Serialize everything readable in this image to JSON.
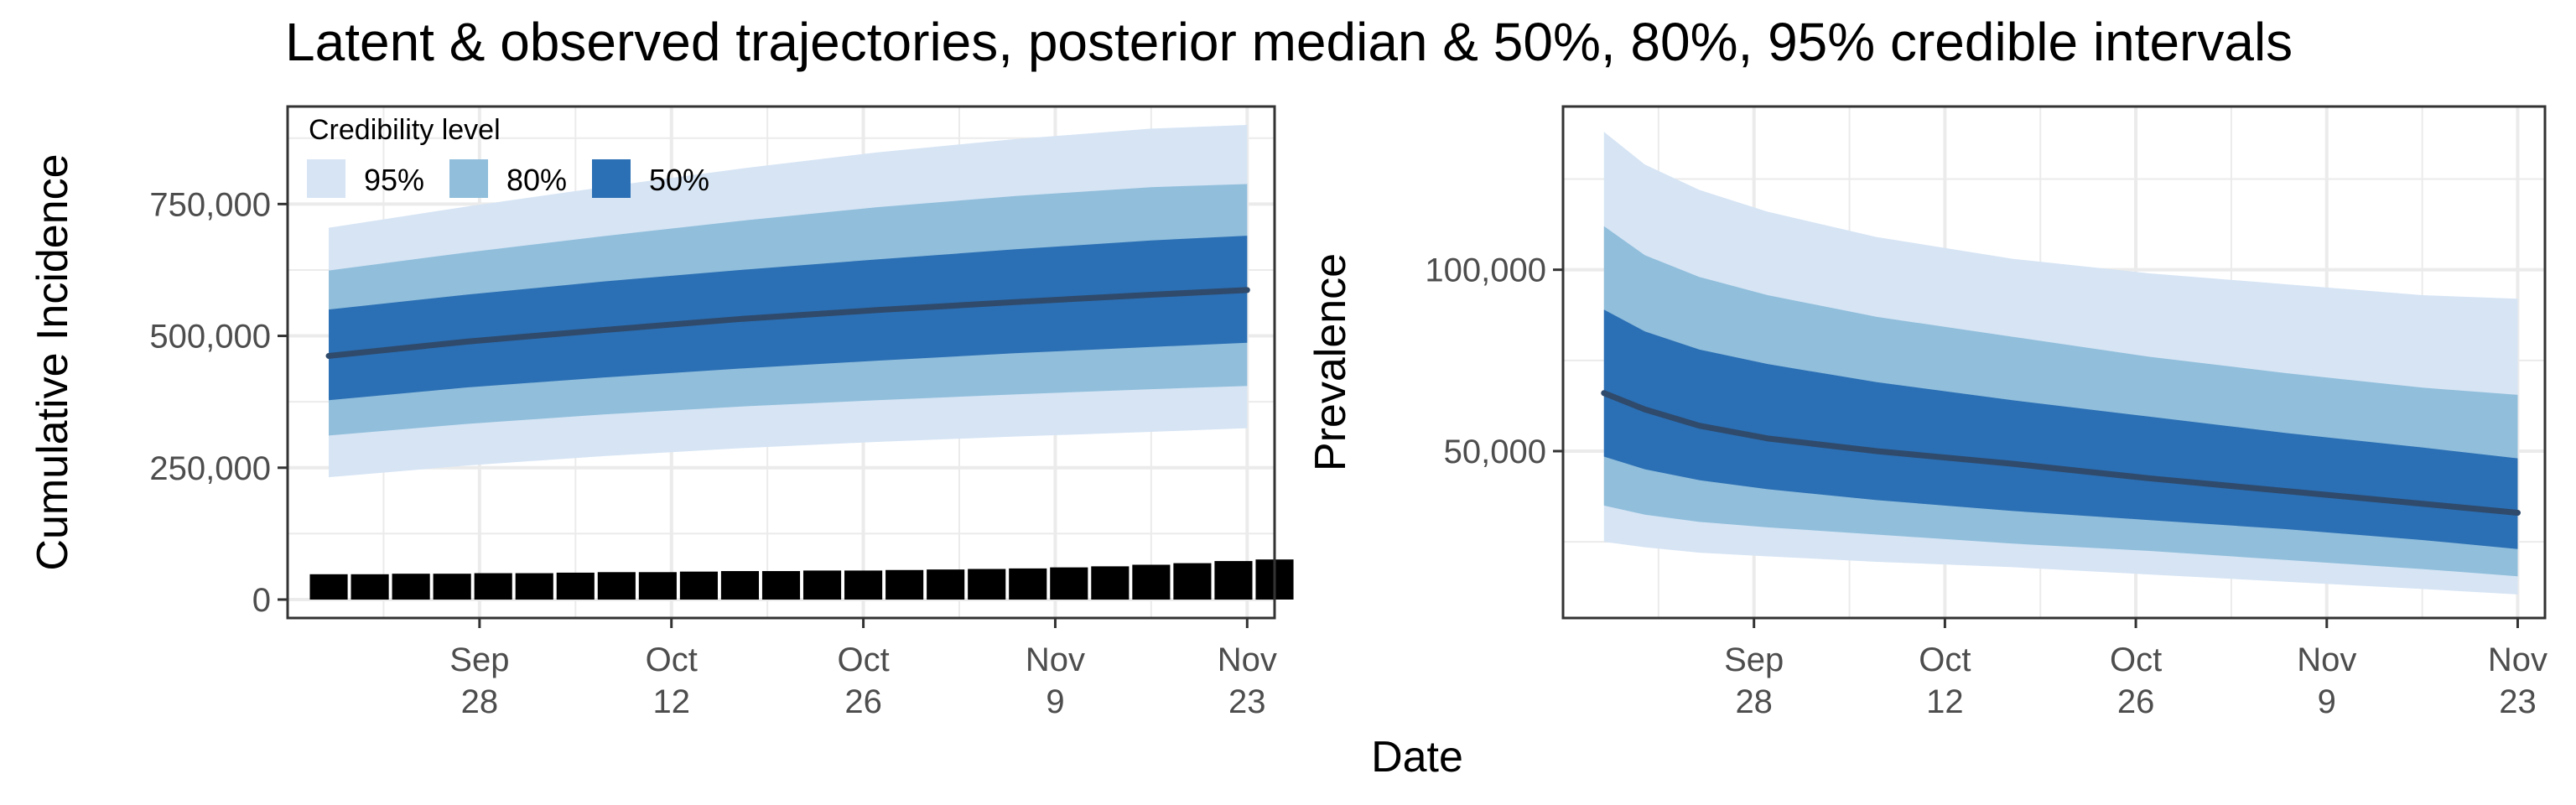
{
  "title": "Latent & observed trajectories, posterior median & 50%, 80%, 95% credible intervals",
  "shared_xlabel": "Date",
  "colors": {
    "ci95": "#d6e4f4",
    "ci80": "#90bedb",
    "ci50": "#2b6fb4",
    "median": "#2f4a6b",
    "bars": "#000000",
    "grid": "#ebebeb",
    "panel_border": "#333333",
    "axis_text": "#4d4d4d"
  },
  "legend": {
    "title": "Credibility level",
    "items": [
      {
        "label": "95%",
        "color": "#d6e4f4"
      },
      {
        "label": "80%",
        "color": "#90bedb"
      },
      {
        "label": "50%",
        "color": "#2b6fb4"
      }
    ],
    "placement": "top-left inside left panel"
  },
  "chart_data": [
    {
      "type": "area",
      "ylabel": "Cumulative Incidence",
      "xlabel": "",
      "x_axis": "date",
      "xlim": [
        "2020-09-14",
        "2020-11-25"
      ],
      "ylim": [
        -35000,
        935000
      ],
      "x_ticks": [
        {
          "date": "2020-09-28",
          "label": [
            "Sep",
            "28"
          ]
        },
        {
          "date": "2020-10-12",
          "label": [
            "Oct",
            "12"
          ]
        },
        {
          "date": "2020-10-26",
          "label": [
            "Oct",
            "26"
          ]
        },
        {
          "date": "2020-11-09",
          "label": [
            "Nov",
            "9"
          ]
        },
        {
          "date": "2020-11-23",
          "label": [
            "Nov",
            "23"
          ]
        }
      ],
      "y_ticks": [
        {
          "value": 0,
          "label": "0"
        },
        {
          "value": 250000,
          "label": "250,000"
        },
        {
          "value": 500000,
          "label": "500,000"
        },
        {
          "value": 750000,
          "label": "750,000"
        }
      ],
      "grid": true,
      "dates": [
        "2020-09-17",
        "2020-09-27",
        "2020-10-07",
        "2020-10-17",
        "2020-10-27",
        "2020-11-06",
        "2020-11-16",
        "2020-11-23"
      ],
      "median": [
        462000,
        489000,
        511000,
        532000,
        549000,
        564000,
        578000,
        587000
      ],
      "ci50": {
        "lower": [
          378000,
          402000,
          421000,
          438000,
          453000,
          467000,
          479000,
          487000
        ],
        "upper": [
          550000,
          578000,
          603000,
          625000,
          645000,
          664000,
          681000,
          690000
        ]
      },
      "ci80": {
        "lower": [
          311000,
          333000,
          351000,
          366000,
          378000,
          389000,
          399000,
          405000
        ],
        "upper": [
          624000,
          658000,
          689000,
          718000,
          744000,
          765000,
          782000,
          788000
        ]
      },
      "ci95": {
        "lower": [
          232000,
          254000,
          272000,
          287000,
          299000,
          309000,
          318000,
          325000
        ],
        "upper": [
          705000,
          745000,
          782000,
          817000,
          848000,
          873000,
          893000,
          900000
        ]
      },
      "bars": {
        "name": "observed",
        "start_date": "2020-09-17",
        "step_days": 3,
        "values": [
          48000,
          48000,
          49000,
          49000,
          50000,
          50000,
          51000,
          52000,
          52000,
          53000,
          54000,
          54000,
          55000,
          55000,
          56000,
          57000,
          58000,
          59000,
          61000,
          63000,
          66000,
          69000,
          73000,
          76000
        ]
      }
    },
    {
      "type": "area",
      "ylabel": "Prevalence",
      "xlabel": "",
      "x_axis": "date",
      "xlim": [
        "2020-09-14",
        "2020-11-25"
      ],
      "ylim": [
        4000,
        145000
      ],
      "x_ticks": [
        {
          "date": "2020-09-28",
          "label": [
            "Sep",
            "28"
          ]
        },
        {
          "date": "2020-10-12",
          "label": [
            "Oct",
            "12"
          ]
        },
        {
          "date": "2020-10-26",
          "label": [
            "Oct",
            "26"
          ]
        },
        {
          "date": "2020-11-09",
          "label": [
            "Nov",
            "9"
          ]
        },
        {
          "date": "2020-11-23",
          "label": [
            "Nov",
            "23"
          ]
        }
      ],
      "y_ticks": [
        {
          "value": 50000,
          "label": "50,000"
        },
        {
          "value": 100000,
          "label": "100,000"
        }
      ],
      "grid": true,
      "dates": [
        "2020-09-17",
        "2020-09-20",
        "2020-09-24",
        "2020-09-29",
        "2020-10-07",
        "2020-10-17",
        "2020-10-27",
        "2020-11-06",
        "2020-11-16",
        "2020-11-23"
      ],
      "median": [
        66000,
        61500,
        57000,
        53500,
        50000,
        46500,
        42500,
        39000,
        35500,
        33000
      ],
      "ci50": {
        "lower": [
          48500,
          45000,
          42000,
          39500,
          36500,
          33500,
          31000,
          28500,
          25500,
          23000
        ],
        "upper": [
          89000,
          83000,
          78000,
          74000,
          69000,
          64000,
          59500,
          55000,
          51000,
          48000
        ]
      },
      "ci80": {
        "lower": [
          35000,
          32500,
          30500,
          29000,
          27000,
          24500,
          22500,
          20000,
          17500,
          15500
        ],
        "upper": [
          112000,
          104000,
          98000,
          93000,
          87000,
          81500,
          76000,
          71500,
          67500,
          65500
        ]
      },
      "ci95": {
        "lower": [
          25000,
          23500,
          22000,
          21000,
          19500,
          18000,
          16000,
          14000,
          12000,
          10500
        ],
        "upper": [
          138000,
          129000,
          122000,
          116000,
          109000,
          103000,
          99000,
          96000,
          93000,
          92000
        ]
      }
    }
  ]
}
